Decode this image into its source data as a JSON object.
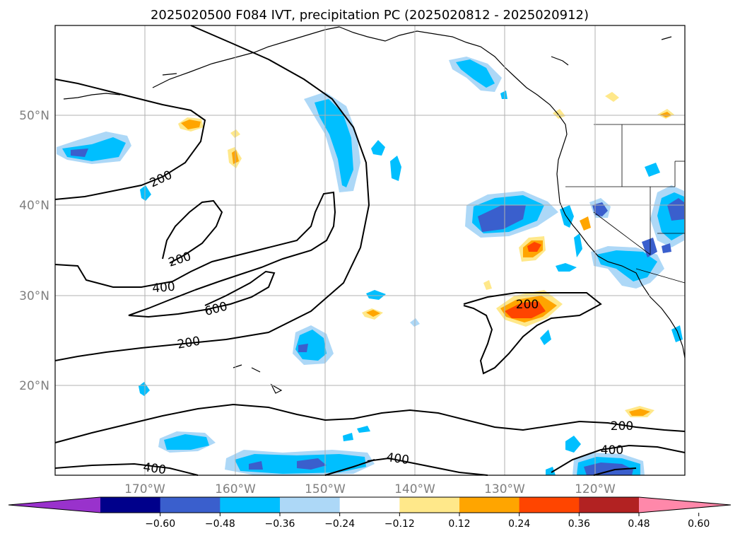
{
  "title": "2025020500 F084 IVT, precipitation PC (2025020812 - 2025020912)",
  "lat_labels": [
    "50°N",
    "40°N",
    "30°N",
    "20°N"
  ],
  "lon_labels": [
    "170°W",
    "160°W",
    "150°W",
    "140°W",
    "130°W",
    "120°W"
  ],
  "contour_labels": [
    "200",
    "200",
    "400",
    "600",
    "200",
    "200",
    "200",
    "400",
    "400",
    "400"
  ],
  "colorbar": {
    "ticks": [
      "−0.60",
      "−0.48",
      "−0.36",
      "−0.24",
      "−0.12",
      "0.12",
      "0.24",
      "0.36",
      "0.48",
      "0.60"
    ],
    "colors": [
      "#9932cc",
      "#00008b",
      "#3a5fcd",
      "#00bfff",
      "#add8f7",
      "#ffffff",
      "#ffe88a",
      "#ffa500",
      "#ff4500",
      "#b22222",
      "#ff88aa"
    ]
  }
}
